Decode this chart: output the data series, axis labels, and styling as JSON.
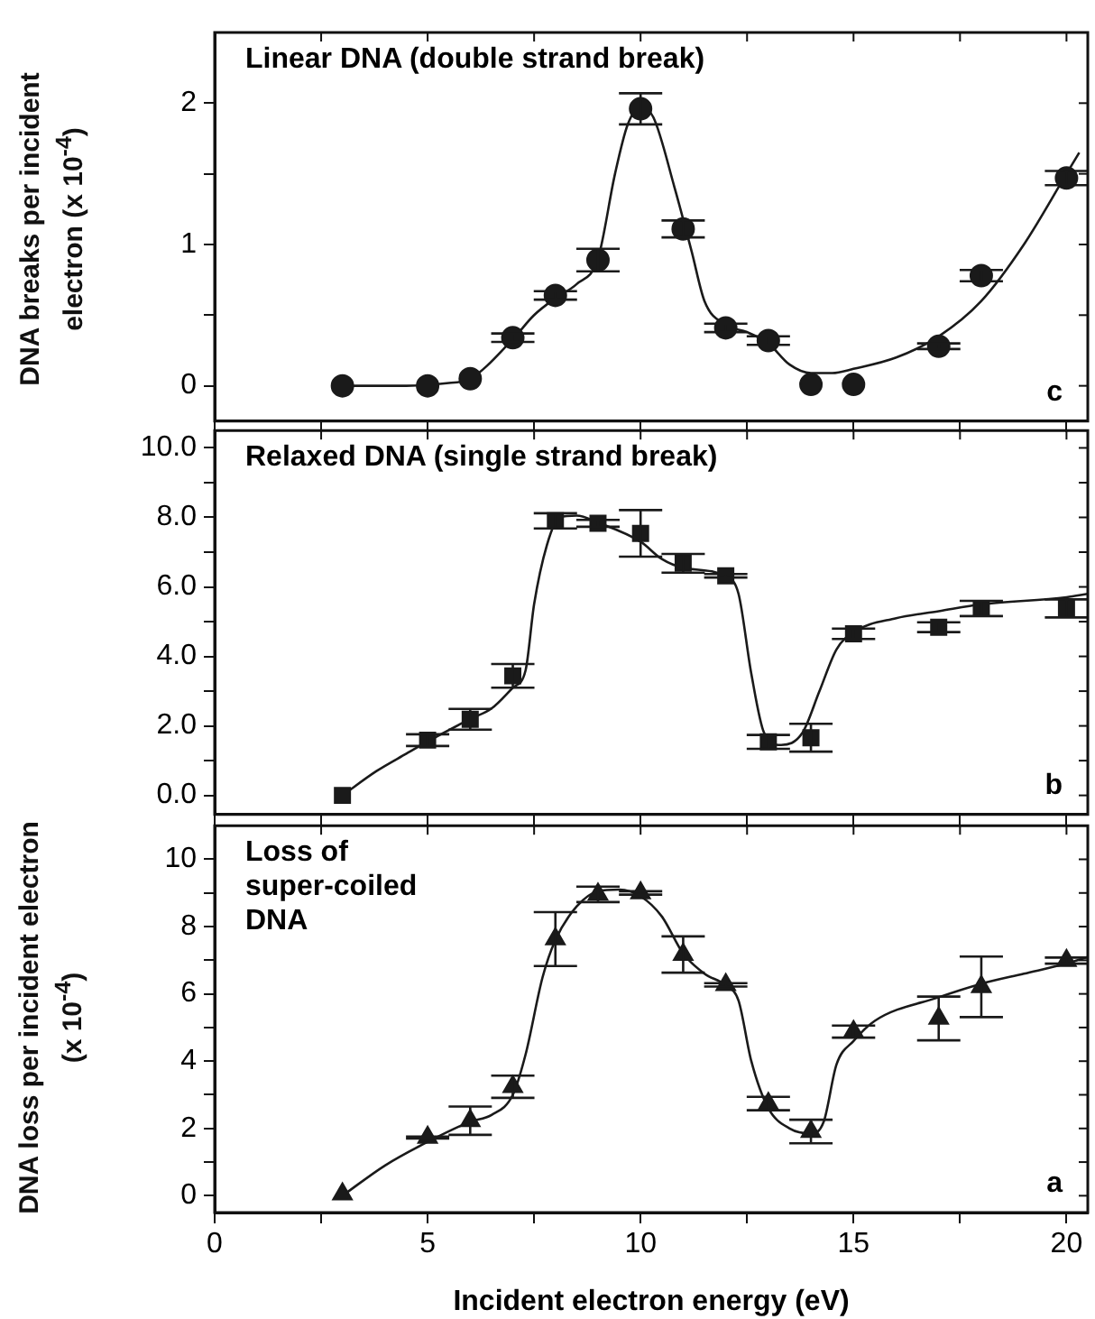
{
  "chart_data": [
    {
      "type": "scatter",
      "ylabel": "DNA breaks per incident electron (x 10$^{-4}$)",
      "annotations": [
        "Linear DNA (double strand break)",
        "c"
      ],
      "x": [
        3,
        5,
        6,
        7,
        8,
        9,
        10,
        11,
        12,
        13,
        14,
        15,
        17,
        18,
        20
      ],
      "series": [
        {
          "marker": "circle",
          "color": "#1a1a1a",
          "values": [
            0,
            0,
            0.05,
            0.34,
            0.64,
            0.89,
            1.96,
            1.11,
            0.41,
            0.32,
            0.01,
            0.01,
            0.28,
            0.78,
            1.47
          ],
          "errors": [
            null,
            null,
            null,
            0.03,
            0.03,
            0.08,
            0.11,
            0.06,
            0.03,
            0.03,
            null,
            null,
            0.02,
            0.04,
            0.05
          ]
        },
        {
          "type": "line",
          "marker": "none",
          "color": "#1a1a1a",
          "x": [
            3,
            4.5,
            5.5,
            6,
            7,
            7.5,
            8,
            8.5,
            9,
            9.4,
            9.7,
            10,
            10.3,
            10.8,
            11.2,
            11.5,
            12,
            12.5,
            13,
            13.5,
            14,
            14.5,
            15,
            16,
            17,
            18,
            19,
            20,
            20.3
          ],
          "values": [
            0,
            0,
            0.02,
            0.05,
            0.33,
            0.5,
            0.62,
            0.72,
            0.9,
            1.5,
            1.85,
            1.97,
            1.9,
            1.4,
            0.95,
            0.6,
            0.43,
            0.38,
            0.3,
            0.15,
            0.09,
            0.09,
            0.12,
            0.2,
            0.35,
            0.6,
            1.0,
            1.5,
            1.65
          ]
        }
      ],
      "xlim": [
        0,
        20.5
      ],
      "xticks": [
        0,
        {
          "value": 2.5,
          "label": null
        },
        5,
        {
          "value": 7.5,
          "label": null
        },
        10,
        {
          "value": 12.5,
          "label": null
        },
        15,
        {
          "value": 17.5,
          "label": null
        },
        20
      ],
      "ylim": [
        -0.25,
        2.5
      ],
      "yticks": [
        0,
        {
          "value": 0.5,
          "label": null
        },
        1,
        {
          "value": 1.5,
          "label": null
        },
        2
      ],
      "tick_labels": "y"
    },
    {
      "type": "scatter",
      "annotations": [
        "Relaxed DNA (single strand break)",
        "b"
      ],
      "x": [
        3,
        5,
        6,
        7,
        8,
        9,
        10,
        11,
        12,
        13,
        14,
        15,
        17,
        18,
        20
      ],
      "series": [
        {
          "marker": "square",
          "color": "#1a1a1a",
          "values": [
            0,
            1.59,
            2.19,
            3.44,
            7.9,
            7.83,
            7.54,
            6.68,
            6.32,
            1.54,
            1.66,
            4.65,
            4.84,
            5.38,
            5.38
          ],
          "errors": [
            null,
            0.17,
            0.3,
            0.34,
            0.22,
            0.1,
            0.67,
            0.27,
            0.05,
            0.2,
            0.4,
            0.15,
            0.14,
            0.22,
            0.26
          ]
        },
        {
          "type": "line",
          "marker": "none",
          "color": "#1a1a1a",
          "x": [
            3,
            3.8,
            4.5,
            5,
            6,
            6.5,
            7,
            7.3,
            7.5,
            7.8,
            8.1,
            8.5,
            9,
            10,
            10.5,
            11,
            12,
            12.3,
            12.6,
            12.9,
            13.3,
            13.8,
            14.2,
            14.6,
            15,
            16,
            17,
            18,
            20,
            20.5
          ],
          "values": [
            0,
            0.7,
            1.2,
            1.55,
            2.2,
            2.5,
            3.1,
            3.6,
            5.5,
            7.2,
            8,
            8.05,
            7.85,
            7.3,
            6.8,
            6.55,
            6.3,
            5.8,
            3.5,
            1.8,
            1.45,
            1.8,
            3,
            4.2,
            4.7,
            5.1,
            5.3,
            5.5,
            5.7,
            5.8
          ]
        }
      ],
      "xlim": [
        0,
        20.5
      ],
      "xticks": [
        0,
        {
          "value": 2.5,
          "label": null
        },
        5,
        {
          "value": 7.5,
          "label": null
        },
        10,
        {
          "value": 12.5,
          "label": null
        },
        15,
        {
          "value": 17.5,
          "label": null
        },
        20
      ],
      "ylim": [
        -0.55,
        10.5
      ],
      "yticks": [
        {
          "value": 0,
          "label": "0.0"
        },
        {
          "value": 1,
          "label": null
        },
        {
          "value": 2,
          "label": "2.0"
        },
        {
          "value": 3,
          "label": null
        },
        {
          "value": 4,
          "label": "4.0"
        },
        {
          "value": 5,
          "label": null
        },
        {
          "value": 6,
          "label": "6.0"
        },
        {
          "value": 7,
          "label": null
        },
        {
          "value": 8,
          "label": "8.0"
        },
        {
          "value": 9,
          "label": null
        },
        {
          "value": 10,
          "label": "10.0"
        }
      ],
      "tick_labels": "y"
    },
    {
      "type": "scatter",
      "ylabel": "DNA loss per incident electron (x 10$^{-4}$)",
      "xlabel": "Incident electron energy (eV)",
      "annotations": [
        "Loss of\nsuper-coiled\nDNA",
        "a"
      ],
      "x": [
        3,
        5,
        6,
        7,
        8,
        9,
        10,
        11,
        12,
        13,
        14,
        15,
        17,
        18,
        20
      ],
      "series": [
        {
          "marker": "triangle",
          "color": "#1a1a1a",
          "values": [
            0.05,
            1.73,
            2.23,
            3.24,
            7.63,
            8.96,
            9,
            7.17,
            6.27,
            2.74,
            1.91,
            4.88,
            5.27,
            6.21,
            6.99
          ],
          "errors": [
            null,
            0.03,
            0.42,
            0.33,
            0.8,
            0.23,
            0.05,
            0.54,
            0.05,
            0.2,
            0.35,
            0.18,
            0.65,
            0.9,
            0.09
          ]
        },
        {
          "type": "line",
          "marker": "none",
          "color": "#1a1a1a",
          "x": [
            3,
            4,
            5,
            6,
            6.5,
            7,
            7.3,
            7.7,
            8,
            8.5,
            9,
            9.5,
            10,
            10.5,
            11,
            11.5,
            12,
            12.3,
            12.6,
            13,
            13.5,
            14,
            14.3,
            14.6,
            15,
            15.5,
            17,
            18,
            19,
            20,
            20.5
          ],
          "values": [
            0,
            0.9,
            1.6,
            2.2,
            2.4,
            3,
            4.2,
            6.5,
            7.6,
            8.6,
            9.05,
            9.1,
            8.9,
            8.3,
            7.2,
            6.6,
            6.25,
            5.8,
            4,
            2.6,
            2,
            1.85,
            2.2,
            3.9,
            4.6,
            5.2,
            5.9,
            6.3,
            6.6,
            6.9,
            7.1
          ]
        }
      ],
      "xlim": [
        0,
        20.5
      ],
      "xticks": [
        0,
        {
          "value": 2.5,
          "label": null
        },
        5,
        {
          "value": 7.5,
          "label": null
        },
        10,
        {
          "value": 12.5,
          "label": null
        },
        15,
        {
          "value": 17.5,
          "label": null
        },
        20
      ],
      "ylim": [
        -0.5,
        11
      ],
      "yticks": [
        0,
        {
          "value": 1,
          "label": null
        },
        2,
        {
          "value": 3,
          "label": null
        },
        4,
        {
          "value": 5,
          "label": null
        },
        6,
        {
          "value": 7,
          "label": null
        },
        8,
        {
          "value": 9,
          "label": null
        },
        10
      ]
    }
  ]
}
